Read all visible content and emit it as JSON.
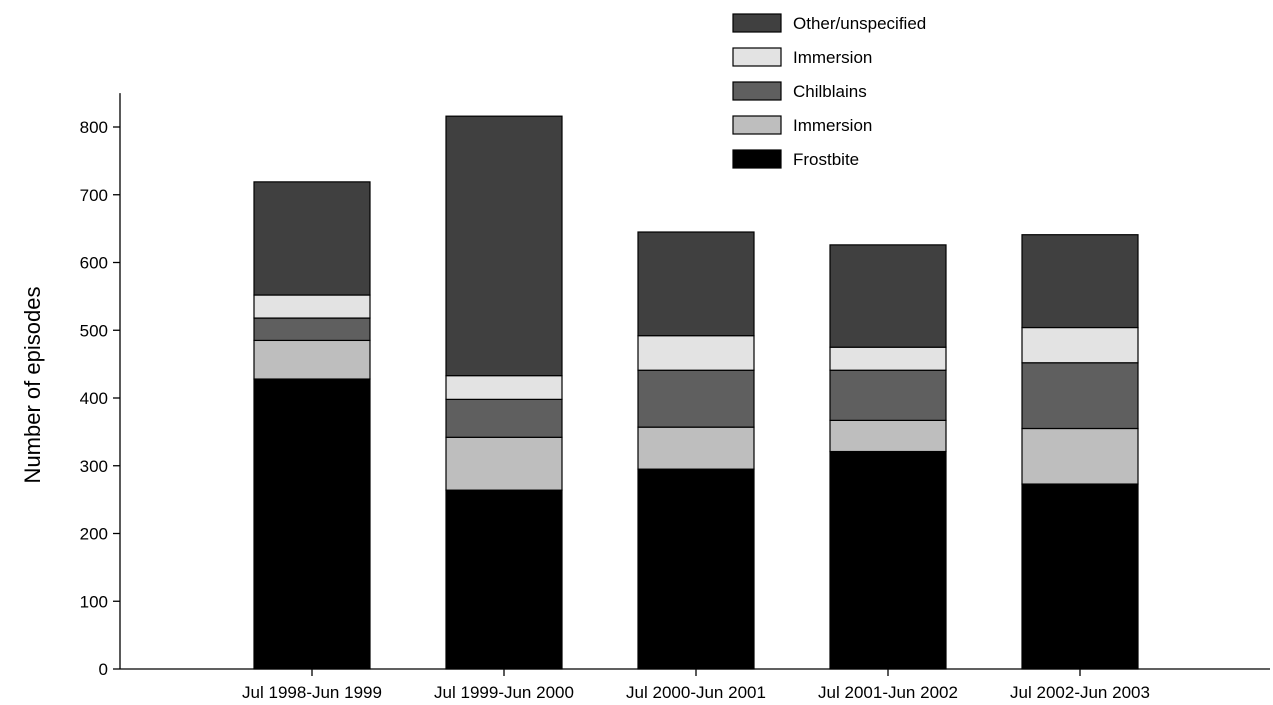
{
  "chart_data": {
    "type": "bar",
    "stacked": true,
    "title": "",
    "xlabel": "",
    "ylabel": "Number of episodes",
    "ylim": [
      0,
      850
    ],
    "yticks": [
      0,
      100,
      200,
      300,
      400,
      500,
      600,
      700,
      800
    ],
    "grid": false,
    "legend_position": "top-right",
    "categories": [
      "Jul 1998-Jun 1999",
      "Jul 1999-Jun 2000",
      "Jul 2000-Jun 2001",
      "Jul 2001-Jun 2002",
      "Jul 2002-Jun 2003"
    ],
    "series": [
      {
        "name": "Frostbite",
        "color": "#000000",
        "values": [
          428,
          264,
          295,
          321,
          273
        ]
      },
      {
        "name": "Immersion",
        "color": "#bebebe",
        "values": [
          57,
          78,
          62,
          46,
          82
        ]
      },
      {
        "name": "Chilblains",
        "color": "#5f5f5f",
        "values": [
          33,
          56,
          84,
          74,
          97
        ]
      },
      {
        "name": "Immersion",
        "color": "#e3e3e3",
        "values": [
          34,
          35,
          51,
          34,
          52
        ]
      },
      {
        "name": "Other/unspecified",
        "color": "#404040",
        "values": [
          167,
          383,
          153,
          151,
          137
        ]
      }
    ]
  }
}
